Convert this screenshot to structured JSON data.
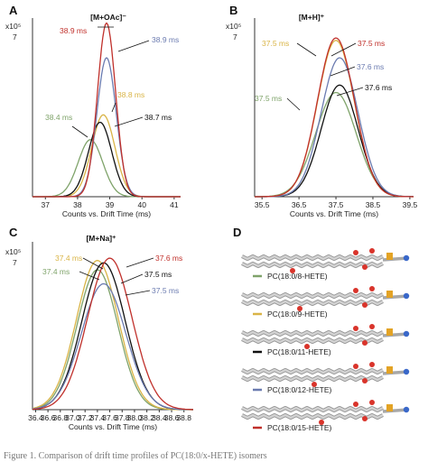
{
  "caption": "Figure 1. Comparison of drift time profiles of PC(18:0/x-HETE) isomers",
  "panel_d": {
    "letter": "D",
    "legend": [
      {
        "label": "PC(18:0/8-HETE)",
        "color": "#7fa36a"
      },
      {
        "label": "PC(18:0/9-HETE)",
        "color": "#d9b446"
      },
      {
        "label": "PC(18:0/11-HETE)",
        "color": "#111111"
      },
      {
        "label": "PC(18:0/12-HETE)",
        "color": "#6b7bb0"
      },
      {
        "label": "PC(18:0/15-HETE)",
        "color": "#c0302b"
      }
    ]
  },
  "chart_data": [
    {
      "type": "line",
      "panel": "A",
      "title": "[M+OAc]⁻",
      "xlabel": "Counts vs. Drift Time (ms)",
      "y_scale_label": [
        "x10⁵",
        "7"
      ],
      "xlim": [
        36.6,
        41.2
      ],
      "ylim": [
        0,
        7.2
      ],
      "xticks": [
        "37",
        "38",
        "39",
        "40",
        "41"
      ],
      "xtick_values": [
        37,
        38,
        39,
        40,
        41
      ],
      "series": [
        {
          "name": "PC(18:0/8-HETE)",
          "color": "#7fa36a",
          "peak_x": 38.4,
          "peak_y": 2.3,
          "sigma": 0.38
        },
        {
          "name": "PC(18:0/9-HETE)",
          "color": "#d9b446",
          "peak_x": 38.8,
          "peak_y": 3.3,
          "sigma": 0.36
        },
        {
          "name": "PC(18:0/11-HETE)",
          "color": "#111111",
          "peak_x": 38.7,
          "peak_y": 3.0,
          "sigma": 0.36
        },
        {
          "name": "PC(18:0/12-HETE)",
          "color": "#6b7bb0",
          "peak_x": 38.9,
          "peak_y": 5.6,
          "sigma": 0.3
        },
        {
          "name": "PC(18:0/15-HETE)",
          "color": "#c0302b",
          "peak_x": 38.9,
          "peak_y": 7.0,
          "sigma": 0.28
        }
      ],
      "annotations": [
        {
          "text": "38.9 ms",
          "color": "#c0302b"
        },
        {
          "text": "38.9 ms",
          "color": "#6b7bb0"
        },
        {
          "text": "38.8 ms",
          "color": "#d9b446"
        },
        {
          "text": "38.7 ms",
          "color": "#111111"
        },
        {
          "text": "38.4 ms",
          "color": "#7fa36a"
        }
      ]
    },
    {
      "type": "line",
      "panel": "B",
      "title": "[M+H]⁺",
      "xlabel": "Counts vs. Drift Time (ms)",
      "y_scale_label": [
        "x10⁵",
        "7"
      ],
      "xlim": [
        35.3,
        39.6
      ],
      "ylim": [
        0,
        7.2
      ],
      "xticks": [
        "35.5",
        "36.5",
        "37.5",
        "38.5",
        "39.5"
      ],
      "xtick_values": [
        35.5,
        36.5,
        37.5,
        38.5,
        39.5
      ],
      "series": [
        {
          "name": "PC(18:0/8-HETE)",
          "color": "#7fa36a",
          "peak_x": 37.5,
          "peak_y": 4.2,
          "sigma": 0.55
        },
        {
          "name": "PC(18:0/9-HETE)",
          "color": "#d9b446",
          "peak_x": 37.5,
          "peak_y": 6.3,
          "sigma": 0.5
        },
        {
          "name": "PC(18:0/11-HETE)",
          "color": "#111111",
          "peak_x": 37.6,
          "peak_y": 4.5,
          "sigma": 0.5
        },
        {
          "name": "PC(18:0/12-HETE)",
          "color": "#6b7bb0",
          "peak_x": 37.6,
          "peak_y": 5.6,
          "sigma": 0.5
        },
        {
          "name": "PC(18:0/15-HETE)",
          "color": "#c0302b",
          "peak_x": 37.5,
          "peak_y": 6.4,
          "sigma": 0.5
        }
      ],
      "annotations": [
        {
          "text": "37.5 ms",
          "color": "#d9b446"
        },
        {
          "text": "37.5 ms",
          "color": "#c0302b"
        },
        {
          "text": "37.6 ms",
          "color": "#6b7bb0"
        },
        {
          "text": "37.6 ms",
          "color": "#111111"
        },
        {
          "text": "37.5 ms",
          "color": "#7fa36a"
        }
      ]
    },
    {
      "type": "line",
      "panel": "C",
      "title": "[M+Na]⁺",
      "xlabel": "Counts vs. Drift Time (ms)",
      "y_scale_label": [
        "x10⁵",
        "7"
      ],
      "xlim": [
        36.35,
        38.95
      ],
      "ylim": [
        0,
        7.2
      ],
      "xticks": [
        "36.4",
        "36.6",
        "36.8",
        "37.0",
        "37.2",
        "37.4",
        "37.6",
        "37.8",
        "38.0",
        "38.2",
        "38.4",
        "38.6",
        "38.8"
      ],
      "xtick_values": [
        36.4,
        36.6,
        36.8,
        37.0,
        37.2,
        37.4,
        37.6,
        37.8,
        38.0,
        38.2,
        38.4,
        38.6,
        38.8
      ],
      "series": [
        {
          "name": "PC(18:0/8-HETE)",
          "color": "#7fa36a",
          "peak_x": 37.4,
          "peak_y": 6.0,
          "sigma": 0.33
        },
        {
          "name": "PC(18:0/9-HETE)",
          "color": "#d9b446",
          "peak_x": 37.4,
          "peak_y": 6.4,
          "sigma": 0.34
        },
        {
          "name": "PC(18:0/11-HETE)",
          "color": "#111111",
          "peak_x": 37.5,
          "peak_y": 6.3,
          "sigma": 0.35
        },
        {
          "name": "PC(18:0/12-HETE)",
          "color": "#6b7bb0",
          "peak_x": 37.5,
          "peak_y": 5.4,
          "sigma": 0.36
        },
        {
          "name": "PC(18:0/15-HETE)",
          "color": "#c0302b",
          "peak_x": 37.6,
          "peak_y": 6.5,
          "sigma": 0.36
        }
      ],
      "annotations": [
        {
          "text": "37.4 ms",
          "color": "#d9b446"
        },
        {
          "text": "37.4 ms",
          "color": "#7fa36a"
        },
        {
          "text": "37.6 ms",
          "color": "#c0302b"
        },
        {
          "text": "37.5 ms",
          "color": "#111111"
        },
        {
          "text": "37.5 ms",
          "color": "#6b7bb0"
        }
      ]
    }
  ]
}
